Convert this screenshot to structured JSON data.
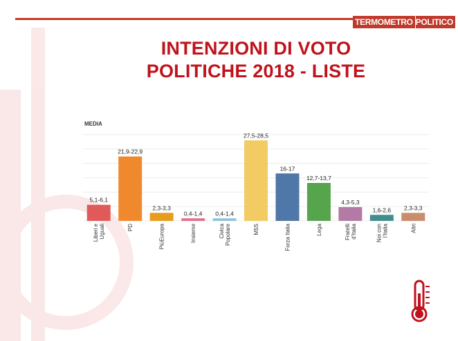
{
  "brand": {
    "logo_part1": "TERMOMETRO",
    "logo_part2": "POLITICO",
    "accent_color": "#c0392b"
  },
  "title_line1": "INTENZIONI DI VOTO",
  "title_line2": "POLITICHE 2018 - LISTE",
  "chart_data": {
    "type": "bar",
    "ylabel": "MEDIA",
    "categories": [
      "Liberi e Uguali",
      "PD",
      "Più Europa",
      "Insieme",
      "Civica Popolare",
      "M5S",
      "Forza Italia",
      "Lega",
      "Fratelli d'Italia",
      "Noi con l'Italia",
      "Altri"
    ],
    "category_labels": [
      [
        "Liberi e",
        "Uguali"
      ],
      [
        "PD"
      ],
      [
        "PiùEuropa"
      ],
      [
        "Insieme"
      ],
      [
        "Civica",
        "Popolare"
      ],
      [
        "M5S"
      ],
      [
        "Forza Italia"
      ],
      [
        "Lega"
      ],
      [
        "Fratelli",
        "d'Italia"
      ],
      [
        "Noi con",
        "l'Italia"
      ],
      [
        "Altri"
      ]
    ],
    "values": [
      5.6,
      22.4,
      2.8,
      0.9,
      0.9,
      28.0,
      16.5,
      13.2,
      4.8,
      2.1,
      2.8
    ],
    "data_labels": [
      "5,1-6,1",
      "21,9-22,9",
      "2,3-3,3",
      "0,4-1,4",
      "0,4-1,4",
      "27,5-28,5",
      "16-17",
      "12,7-13,7",
      "4,3-5,3",
      "1,6-2,6",
      "2,3-3,3"
    ],
    "colors": [
      "#e05a5a",
      "#f0892e",
      "#e89c1e",
      "#e46f8a",
      "#8fc4dc",
      "#f2cc63",
      "#4f77a8",
      "#56a54c",
      "#b37aa6",
      "#3f8f8d",
      "#c98d6e"
    ],
    "ylim": [
      0,
      30
    ],
    "grid": true
  }
}
